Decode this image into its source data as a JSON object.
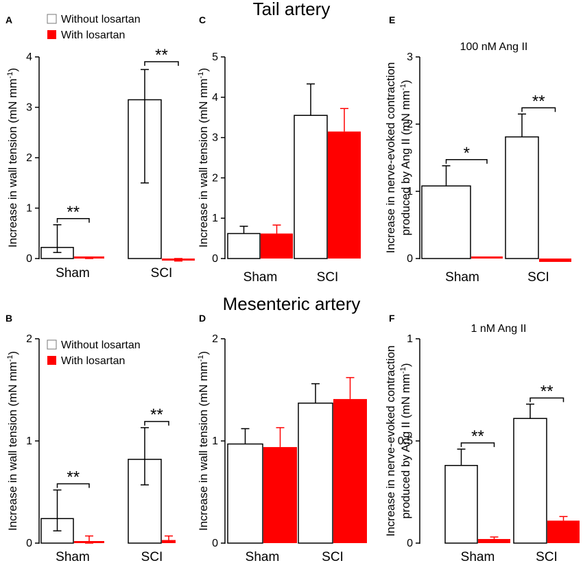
{
  "sections": {
    "top": "Tail artery",
    "bottom": "Mesenteric  artery"
  },
  "legend": {
    "without": "Without losartan",
    "with": "With losartan"
  },
  "colors": {
    "without": "#ffffff",
    "with": "#ff0000",
    "stroke": "#000000"
  },
  "chart_data": [
    {
      "id": "A",
      "type": "bar",
      "title": "",
      "categories": [
        "Sham",
        "SCI"
      ],
      "series": [
        {
          "name": "Without losartan",
          "values": [
            0.22,
            3.15
          ],
          "err_low": [
            0.12,
            1.5
          ],
          "err_high": [
            0.67,
            3.75
          ]
        },
        {
          "name": "With losartan",
          "values": [
            0.02,
            -0.02
          ],
          "err_low": [
            0.0,
            -0.05
          ],
          "err_high": [
            0.03,
            0.0
          ]
        }
      ],
      "ylabel": "Increase in wall tension (mN mm-1)",
      "ylim": [
        0,
        4
      ],
      "yticks": [
        0,
        1,
        2,
        3,
        4
      ],
      "significance": [
        {
          "category": 0,
          "label": "**"
        },
        {
          "category": 1,
          "label": "**"
        }
      ],
      "legend": "top-left"
    },
    {
      "id": "B",
      "type": "bar",
      "title": "",
      "categories": [
        "Sham",
        "SCI"
      ],
      "series": [
        {
          "name": "Without losartan",
          "values": [
            0.24,
            0.82
          ],
          "err_low": [
            0.12,
            0.57
          ],
          "err_high": [
            0.52,
            1.13
          ]
        },
        {
          "name": "With losartan",
          "values": [
            0.02,
            0.03
          ],
          "err_low": [
            0.0,
            0.01
          ],
          "err_high": [
            0.07,
            0.07
          ]
        }
      ],
      "ylabel": "Increase in wall tension (mN mm-1)",
      "ylim": [
        0,
        2
      ],
      "yticks": [
        0,
        1,
        2
      ],
      "significance": [
        {
          "category": 0,
          "label": "**"
        },
        {
          "category": 1,
          "label": "**"
        }
      ],
      "legend": "top-left"
    },
    {
      "id": "C",
      "type": "bar",
      "title": "",
      "categories": [
        "Sham",
        "SCI"
      ],
      "series": [
        {
          "name": "Without losartan",
          "values": [
            0.62,
            3.55
          ],
          "err_high": [
            0.8,
            4.33
          ]
        },
        {
          "name": "With losartan",
          "values": [
            0.62,
            3.15
          ],
          "err_high": [
            0.83,
            3.72
          ]
        }
      ],
      "ylabel": "Increase in wall tension (mN mm-1)",
      "ylim": [
        0,
        5
      ],
      "yticks": [
        0,
        1,
        2,
        3,
        4,
        5
      ],
      "significance": []
    },
    {
      "id": "D",
      "type": "bar",
      "title": "",
      "categories": [
        "Sham",
        "SCI"
      ],
      "series": [
        {
          "name": "Without losartan",
          "values": [
            0.97,
            1.37
          ],
          "err_high": [
            1.12,
            1.56
          ]
        },
        {
          "name": "With losartan",
          "values": [
            0.94,
            1.41
          ],
          "err_high": [
            1.13,
            1.62
          ]
        }
      ],
      "ylabel": "Increase in wall tension (mN mm-1)",
      "ylim": [
        0,
        2
      ],
      "yticks": [
        0,
        1,
        2
      ],
      "significance": []
    },
    {
      "id": "E",
      "type": "bar",
      "title": "100 nM Ang II",
      "categories": [
        "Sham",
        "SCI"
      ],
      "series": [
        {
          "name": "Without losartan",
          "values": [
            1.08,
            1.81
          ],
          "err_high": [
            1.38,
            2.15
          ]
        },
        {
          "name": "With losartan",
          "values": [
            0.0,
            -0.05
          ]
        }
      ],
      "ylabel": "Increase in nerve-evoked contraction produced by Ang II (mN mm-1)",
      "ylim": [
        0,
        3
      ],
      "yticks": [
        0,
        1,
        2,
        3
      ],
      "significance": [
        {
          "category": 0,
          "label": "*"
        },
        {
          "category": 1,
          "label": "**"
        }
      ]
    },
    {
      "id": "F",
      "type": "bar",
      "title": "1 nM Ang II",
      "categories": [
        "Sham",
        "SCI"
      ],
      "series": [
        {
          "name": "Without losartan",
          "values": [
            0.38,
            0.61
          ],
          "err_high": [
            0.46,
            0.68
          ]
        },
        {
          "name": "With losartan",
          "values": [
            0.02,
            0.11
          ],
          "err_high": [
            0.03,
            0.13
          ]
        }
      ],
      "ylabel": "Increase in nerve-evoked contraction produced by Ang II (mN mm-1)",
      "ylim": [
        0,
        1
      ],
      "yticks": [
        0,
        0.5,
        1
      ],
      "ytick_labels": [
        "0",
        "0.5",
        "1"
      ],
      "significance": [
        {
          "category": 0,
          "label": "**"
        },
        {
          "category": 1,
          "label": "**"
        }
      ]
    }
  ]
}
